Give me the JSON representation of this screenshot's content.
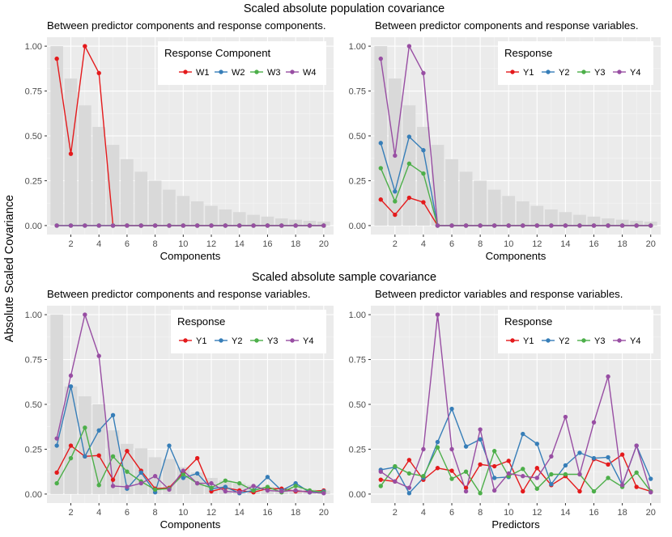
{
  "figure": {
    "top_title": "Scaled absolute population covariance",
    "bottom_title": "Scaled absolute sample covariance",
    "ylabel": "Absolute Scaled Covariance"
  },
  "chart_data": [
    {
      "type": "line",
      "title": "Between predictor components and response components.",
      "xlabel": "Components",
      "ylabel": "Absolute Scaled Covariance",
      "xlim": [
        0.3,
        20.7
      ],
      "ylim": [
        -0.05,
        1.05
      ],
      "xticks": [
        2,
        4,
        6,
        8,
        10,
        12,
        14,
        16,
        18,
        20
      ],
      "yticks": [
        0,
        0.25,
        0.5,
        0.75,
        1
      ],
      "ytick_labels": [
        "0.00",
        "0.25",
        "0.50",
        "0.75",
        "1.00"
      ],
      "bars": [
        1.0,
        0.82,
        0.67,
        0.55,
        0.45,
        0.37,
        0.3,
        0.25,
        0.2,
        0.165,
        0.135,
        0.11,
        0.09,
        0.075,
        0.06,
        0.05,
        0.04,
        0.033,
        0.027,
        0.022
      ],
      "legend": {
        "title": "Response Component",
        "placement": "top-right"
      },
      "series": [
        {
          "name": "W1",
          "color": "#e41a1c",
          "values": [
            0.93,
            0.4,
            1.0,
            0.85,
            0,
            0,
            0,
            0,
            0,
            0,
            0,
            0,
            0,
            0,
            0,
            0,
            0,
            0,
            0,
            0
          ]
        },
        {
          "name": "W2",
          "color": "#377eb8",
          "values": [
            0,
            0,
            0,
            0,
            0,
            0,
            0,
            0,
            0,
            0,
            0,
            0,
            0,
            0,
            0,
            0,
            0,
            0,
            0,
            0
          ]
        },
        {
          "name": "W3",
          "color": "#4daf4a",
          "values": [
            0,
            0,
            0,
            0,
            0,
            0,
            0,
            0,
            0,
            0,
            0,
            0,
            0,
            0,
            0,
            0,
            0,
            0,
            0,
            0
          ]
        },
        {
          "name": "W4",
          "color": "#984ea3",
          "values": [
            0,
            0,
            0,
            0,
            0,
            0,
            0,
            0,
            0,
            0,
            0,
            0,
            0,
            0,
            0,
            0,
            0,
            0,
            0,
            0
          ]
        }
      ]
    },
    {
      "type": "line",
      "title": "Between predictor components and response variables.",
      "xlabel": "Components",
      "ylabel": "Absolute Scaled Covariance",
      "xlim": [
        0.3,
        20.7
      ],
      "ylim": [
        -0.05,
        1.05
      ],
      "xticks": [
        2,
        4,
        6,
        8,
        10,
        12,
        14,
        16,
        18,
        20
      ],
      "yticks": [
        0,
        0.25,
        0.5,
        0.75,
        1
      ],
      "ytick_labels": [
        "0.00",
        "0.25",
        "0.50",
        "0.75",
        "1.00"
      ],
      "bars": [
        1.0,
        0.82,
        0.67,
        0.55,
        0.45,
        0.37,
        0.3,
        0.25,
        0.2,
        0.165,
        0.135,
        0.11,
        0.09,
        0.075,
        0.06,
        0.05,
        0.04,
        0.033,
        0.027,
        0.022
      ],
      "legend": {
        "title": "Response",
        "placement": "top-right"
      },
      "series": [
        {
          "name": "Y1",
          "color": "#e41a1c",
          "values": [
            0.145,
            0.06,
            0.155,
            0.13,
            0,
            0,
            0,
            0,
            0,
            0,
            0,
            0,
            0,
            0,
            0,
            0,
            0,
            0,
            0,
            0
          ]
        },
        {
          "name": "Y2",
          "color": "#377eb8",
          "values": [
            0.46,
            0.19,
            0.495,
            0.42,
            0,
            0,
            0,
            0,
            0,
            0,
            0,
            0,
            0,
            0,
            0,
            0,
            0,
            0,
            0,
            0
          ]
        },
        {
          "name": "Y3",
          "color": "#4daf4a",
          "values": [
            0.32,
            0.135,
            0.345,
            0.29,
            0,
            0,
            0,
            0,
            0,
            0,
            0,
            0,
            0,
            0,
            0,
            0,
            0,
            0,
            0,
            0
          ]
        },
        {
          "name": "Y4",
          "color": "#984ea3",
          "values": [
            0.93,
            0.39,
            1.0,
            0.85,
            0,
            0,
            0,
            0,
            0,
            0,
            0,
            0,
            0,
            0,
            0,
            0,
            0,
            0,
            0,
            0
          ]
        }
      ]
    },
    {
      "type": "line",
      "title": "Between predictor components and response variables.",
      "xlabel": "Components",
      "ylabel": "Absolute Scaled Covariance",
      "xlim": [
        0.3,
        20.7
      ],
      "ylim": [
        -0.05,
        1.05
      ],
      "xticks": [
        2,
        4,
        6,
        8,
        10,
        12,
        14,
        16,
        18,
        20
      ],
      "yticks": [
        0,
        0.25,
        0.5,
        0.75,
        1
      ],
      "ytick_labels": [
        "0.00",
        "0.25",
        "0.50",
        "0.75",
        "1.00"
      ],
      "bars": [
        1.0,
        0.6,
        0.545,
        0.5,
        0.355,
        0.28,
        0.255,
        0.205,
        0.195,
        0.15,
        0.12,
        0.09,
        0.075,
        0.06,
        0.05,
        0.04,
        0.035,
        0.03,
        0.025,
        0.02
      ],
      "legend": {
        "title": "Response",
        "placement": "top-right"
      },
      "series": [
        {
          "name": "Y1",
          "color": "#e41a1c",
          "values": [
            0.12,
            0.27,
            0.21,
            0.215,
            0.08,
            0.24,
            0.13,
            0.03,
            0.035,
            0.12,
            0.2,
            0.015,
            0.035,
            0.02,
            0.01,
            0.03,
            0.03,
            0.015,
            0.015,
            0.02
          ]
        },
        {
          "name": "Y2",
          "color": "#377eb8",
          "values": [
            0.27,
            0.6,
            0.21,
            0.355,
            0.44,
            0.03,
            0.12,
            0.01,
            0.27,
            0.09,
            0.115,
            0.03,
            0.04,
            0.005,
            0.02,
            0.095,
            0.02,
            0.06,
            0.01,
            0.015
          ]
        },
        {
          "name": "Y3",
          "color": "#4daf4a",
          "values": [
            0.06,
            0.2,
            0.37,
            0.05,
            0.21,
            0.125,
            0.07,
            0.025,
            0.03,
            0.11,
            0.06,
            0.035,
            0.075,
            0.06,
            0.02,
            0.04,
            0.01,
            0.045,
            0.02,
            0.01
          ]
        },
        {
          "name": "Y4",
          "color": "#984ea3",
          "values": [
            0.31,
            0.66,
            1.0,
            0.77,
            0.045,
            0.04,
            0.06,
            0.1,
            0.025,
            0.13,
            0.06,
            0.06,
            0.015,
            0.01,
            0.045,
            0.02,
            0.015,
            0.02,
            0.01,
            0.005
          ]
        }
      ]
    },
    {
      "type": "line",
      "title": "Between predictor variables and response variables.",
      "xlabel": "Predictors",
      "ylabel": "Absolute Scaled Covariance",
      "xlim": [
        0.3,
        20.7
      ],
      "ylim": [
        -0.05,
        1.05
      ],
      "xticks": [
        2,
        4,
        6,
        8,
        10,
        12,
        14,
        16,
        18,
        20
      ],
      "yticks": [
        0,
        0.25,
        0.5,
        0.75,
        1
      ],
      "ytick_labels": [
        "0.00",
        "0.25",
        "0.50",
        "0.75",
        "1.00"
      ],
      "legend": {
        "title": "Response",
        "placement": "top-right"
      },
      "series": [
        {
          "name": "Y1",
          "color": "#e41a1c",
          "values": [
            0.08,
            0.07,
            0.19,
            0.08,
            0.145,
            0.13,
            0.035,
            0.165,
            0.155,
            0.185,
            0.015,
            0.145,
            0.05,
            0.1,
            0.015,
            0.195,
            0.165,
            0.22,
            0.04,
            0.015
          ]
        },
        {
          "name": "Y2",
          "color": "#377eb8",
          "values": [
            0.135,
            0.15,
            0.005,
            0.09,
            0.29,
            0.475,
            0.265,
            0.305,
            0.09,
            0.095,
            0.335,
            0.28,
            0.055,
            0.16,
            0.23,
            0.2,
            0.205,
            0.05,
            0.27,
            0.085
          ]
        },
        {
          "name": "Y3",
          "color": "#4daf4a",
          "values": [
            0.045,
            0.155,
            0.115,
            0.1,
            0.26,
            0.085,
            0.125,
            0.005,
            0.24,
            0.1,
            0.14,
            0.03,
            0.11,
            0.11,
            0.11,
            0.015,
            0.09,
            0.04,
            0.12,
            0.015
          ]
        },
        {
          "name": "Y4",
          "color": "#984ea3",
          "values": [
            0.125,
            0.07,
            0.035,
            0.25,
            1.0,
            0.25,
            0.015,
            0.36,
            0.02,
            0.115,
            0.1,
            0.09,
            0.21,
            0.43,
            0.11,
            0.4,
            0.655,
            0.05,
            0.27,
            0.01
          ]
        }
      ]
    }
  ]
}
